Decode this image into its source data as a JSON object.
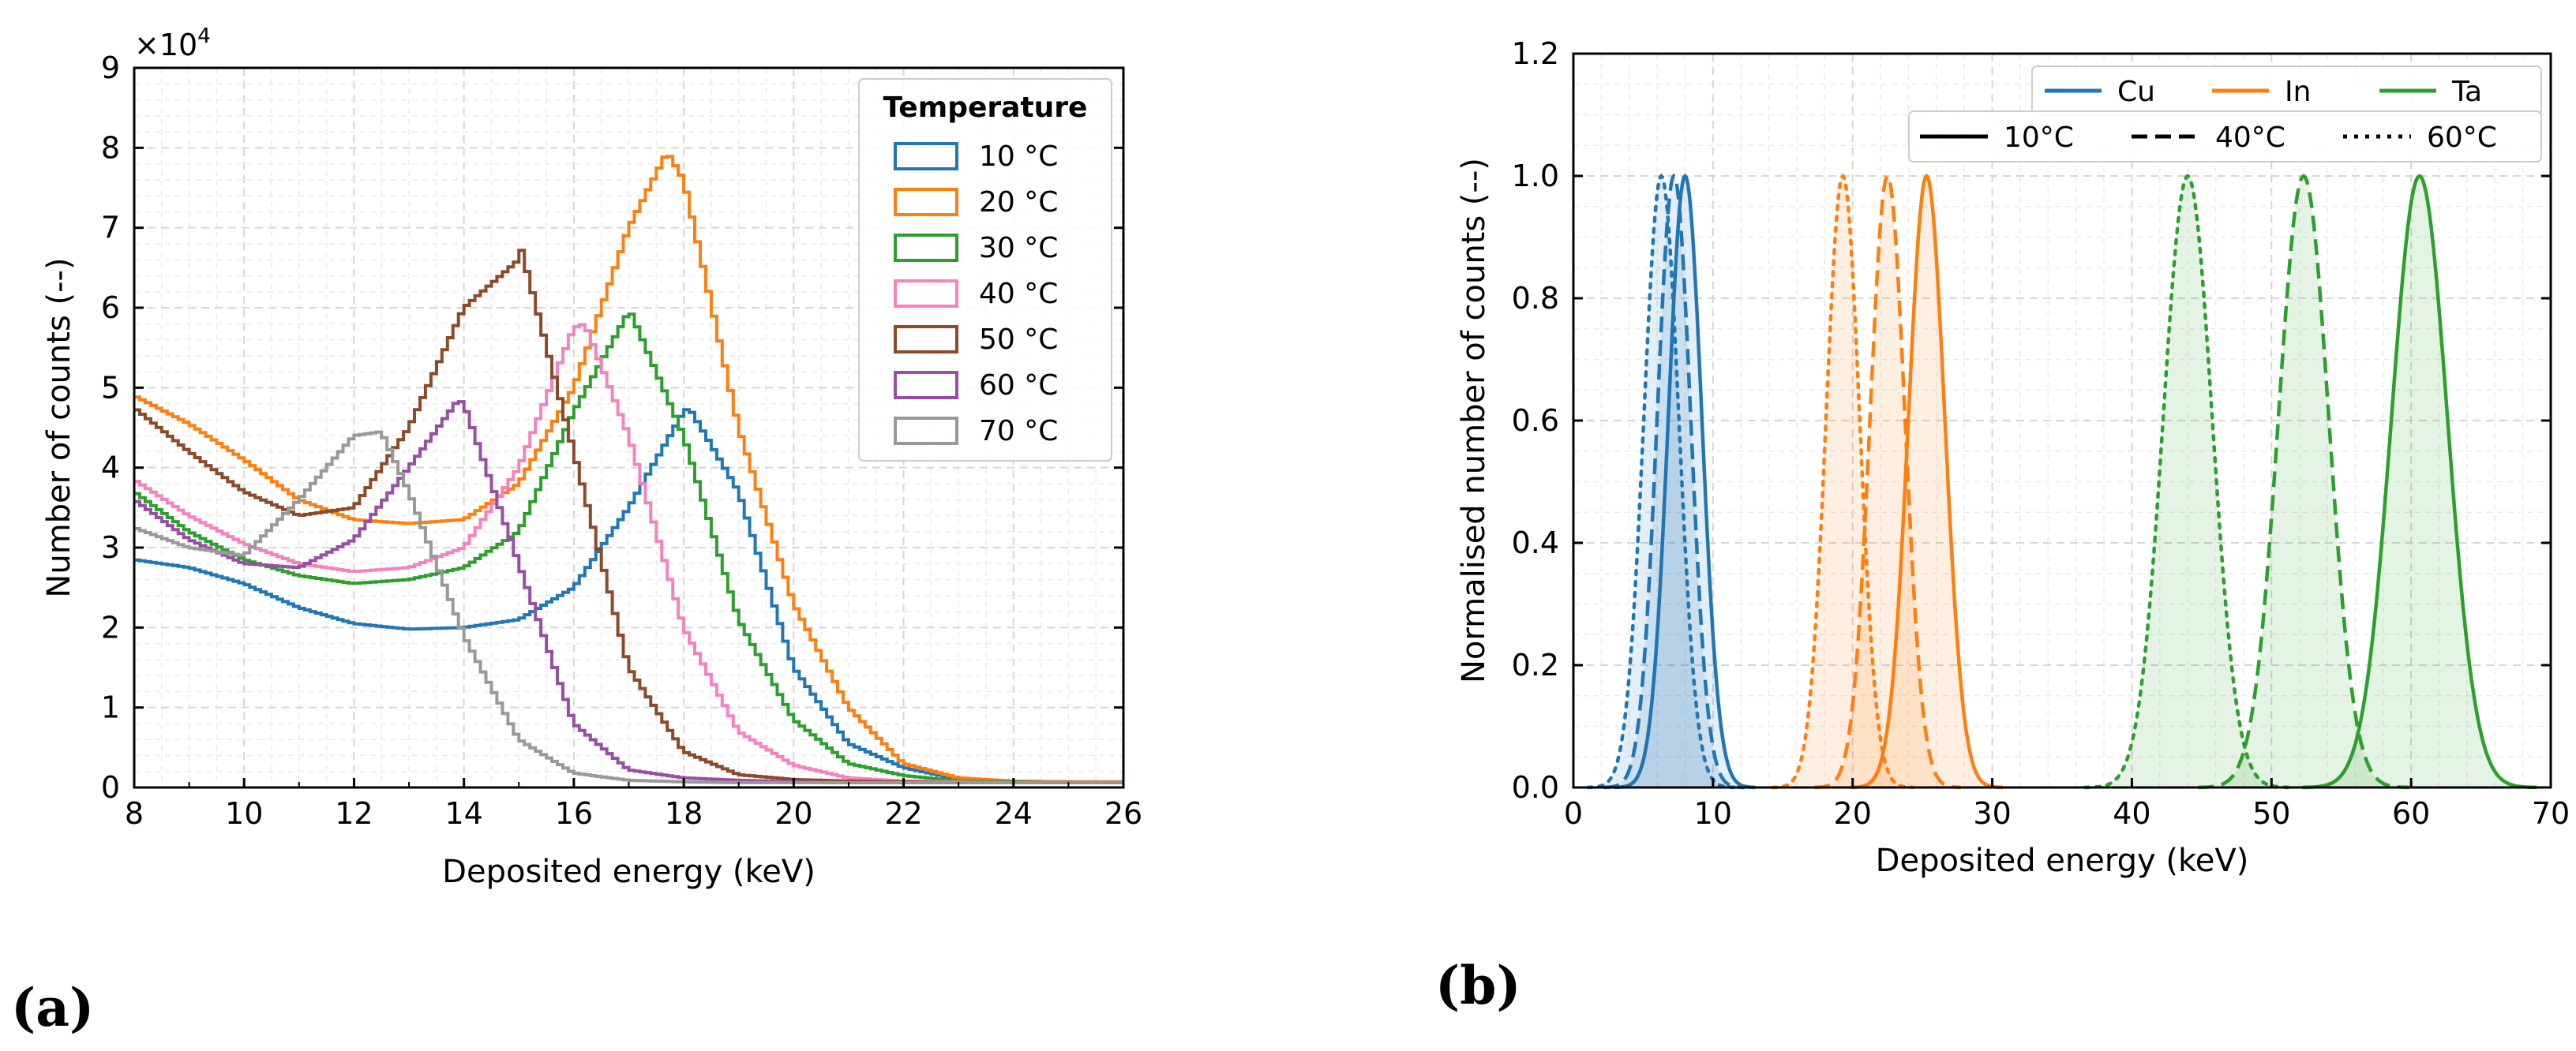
{
  "panels": {
    "a": {
      "label": "(a)"
    },
    "b": {
      "label": "(b)"
    }
  },
  "chart_data": [
    {
      "type": "line",
      "style": "step-histogram",
      "panel": "(a)",
      "xlabel": "Deposited energy (keV)",
      "ylabel": "Number of counts (--)",
      "y_multiplier": "×10^4",
      "y_multiplier_base": "×10",
      "y_multiplier_exp": "4",
      "xlim": [
        8,
        26
      ],
      "ylim": [
        0,
        9
      ],
      "xticks": [
        8,
        10,
        12,
        14,
        16,
        18,
        20,
        22,
        24,
        26
      ],
      "yticks": [
        0,
        1,
        2,
        3,
        4,
        5,
        6,
        7,
        8,
        9
      ],
      "grid": true,
      "legend": {
        "title": "Temperature",
        "position": "top-right"
      },
      "x": [
        8,
        9,
        10,
        11,
        12,
        13,
        14,
        15,
        16,
        17,
        18,
        19,
        20,
        21,
        22,
        23,
        24,
        25,
        26
      ],
      "series": [
        {
          "name": "10 °C",
          "color": "#1f77b4",
          "peak": [
            18.1,
            4.75
          ],
          "values": [
            2.85,
            2.75,
            2.55,
            2.25,
            2.05,
            1.98,
            2.0,
            2.1,
            2.5,
            3.5,
            4.7,
            3.7,
            1.5,
            0.55,
            0.25,
            0.1,
            0.07,
            0.07,
            0.06
          ]
        },
        {
          "name": "20 °C",
          "color": "#ff7f0e",
          "peak": [
            17.7,
            7.95
          ],
          "values": [
            4.9,
            4.55,
            4.1,
            3.6,
            3.35,
            3.3,
            3.35,
            3.8,
            5.0,
            7.0,
            7.6,
            4.5,
            2.3,
            1.0,
            0.3,
            0.12,
            0.08,
            0.07,
            0.07
          ]
        },
        {
          "name": "30 °C",
          "color": "#2ca02c",
          "peak": [
            17.0,
            6.0
          ],
          "values": [
            3.7,
            3.2,
            2.85,
            2.65,
            2.55,
            2.6,
            2.75,
            3.2,
            4.7,
            5.95,
            4.4,
            2.1,
            0.85,
            0.3,
            0.15,
            0.08,
            0.07,
            0.06,
            0.06
          ]
        },
        {
          "name": "40 °C",
          "color": "#f781bf",
          "peak": [
            16.2,
            5.8
          ],
          "values": [
            3.85,
            3.4,
            3.05,
            2.8,
            2.7,
            2.75,
            3.0,
            4.0,
            5.75,
            4.4,
            2.0,
            0.7,
            0.28,
            0.12,
            0.08,
            0.07,
            0.06,
            0.06,
            0.06
          ]
        },
        {
          "name": "50 °C",
          "color": "#8c4a26",
          "peak": [
            15.0,
            6.85
          ],
          "values": [
            4.75,
            4.2,
            3.7,
            3.4,
            3.5,
            4.5,
            6.0,
            6.6,
            4.2,
            1.5,
            0.45,
            0.16,
            0.1,
            0.08,
            0.07,
            0.06,
            0.06,
            0.06,
            0.06
          ]
        },
        {
          "name": "60 °C",
          "color": "#984ea3",
          "peak": [
            13.9,
            4.85
          ],
          "values": [
            3.6,
            3.1,
            2.8,
            2.75,
            3.1,
            4.0,
            4.8,
            2.8,
            0.8,
            0.22,
            0.12,
            0.09,
            0.07,
            0.06,
            0.06,
            0.06,
            0.06,
            0.06,
            0.06
          ]
        },
        {
          "name": "70 °C",
          "color": "#999999",
          "peak": [
            12.5,
            4.45
          ],
          "values": [
            3.25,
            3.0,
            2.9,
            3.6,
            4.4,
            3.7,
            1.9,
            0.6,
            0.18,
            0.09,
            0.07,
            0.06,
            0.06,
            0.06,
            0.06,
            0.06,
            0.06,
            0.06,
            0.06
          ]
        }
      ]
    },
    {
      "type": "area",
      "panel": "(b)",
      "xlabel": "Deposited energy (keV)",
      "ylabel": "Normalised number of counts (--)",
      "xlim": [
        0,
        70
      ],
      "ylim": [
        0,
        1.2
      ],
      "xticks": [
        0,
        10,
        20,
        30,
        40,
        50,
        60,
        70
      ],
      "yticks": [
        "0.0",
        "0.2",
        "0.4",
        "0.6",
        "0.8",
        "1.0",
        "1.2"
      ],
      "grid": true,
      "legend_elements": [
        {
          "label": "Cu",
          "color": "#1f77b4"
        },
        {
          "label": "In",
          "color": "#ff7f0e"
        },
        {
          "label": "Ta",
          "color": "#2ca02c"
        }
      ],
      "legend_temps": [
        {
          "label": "10°C",
          "dash": "solid"
        },
        {
          "label": "40°C",
          "dash": "dashed"
        },
        {
          "label": "60°C",
          "dash": "dotted"
        }
      ],
      "legend_position": "top-right",
      "series": [
        {
          "element": "Cu",
          "temperature": "10°C",
          "color": "#1f77b4",
          "dash": "solid",
          "peak": 8.0,
          "sigma": 1.2,
          "height": 1.0
        },
        {
          "element": "Cu",
          "temperature": "40°C",
          "color": "#1f77b4",
          "dash": "dashed",
          "peak": 7.2,
          "sigma": 1.2,
          "height": 1.0
        },
        {
          "element": "Cu",
          "temperature": "60°C",
          "color": "#1f77b4",
          "dash": "dotted",
          "peak": 6.3,
          "sigma": 1.25,
          "height": 1.0
        },
        {
          "element": "In",
          "temperature": "10°C",
          "color": "#ff7f0e",
          "dash": "solid",
          "peak": 25.3,
          "sigma": 1.3,
          "height": 1.0
        },
        {
          "element": "In",
          "temperature": "40°C",
          "color": "#ff7f0e",
          "dash": "dashed",
          "peak": 22.5,
          "sigma": 1.25,
          "height": 1.0
        },
        {
          "element": "In",
          "temperature": "60°C",
          "color": "#ff7f0e",
          "dash": "dotted",
          "peak": 19.3,
          "sigma": 1.2,
          "height": 1.0
        },
        {
          "element": "Ta",
          "temperature": "10°C",
          "color": "#2ca02c",
          "dash": "solid",
          "peak": 60.6,
          "sigma": 2.0,
          "height": 1.0
        },
        {
          "element": "Ta",
          "temperature": "40°C",
          "color": "#2ca02c",
          "dash": "dashed",
          "peak": 52.3,
          "sigma": 1.8,
          "height": 1.0
        },
        {
          "element": "Ta",
          "temperature": "60°C",
          "color": "#2ca02c",
          "dash": "dotted",
          "peak": 44.0,
          "sigma": 1.75,
          "height": 1.0
        }
      ]
    }
  ]
}
